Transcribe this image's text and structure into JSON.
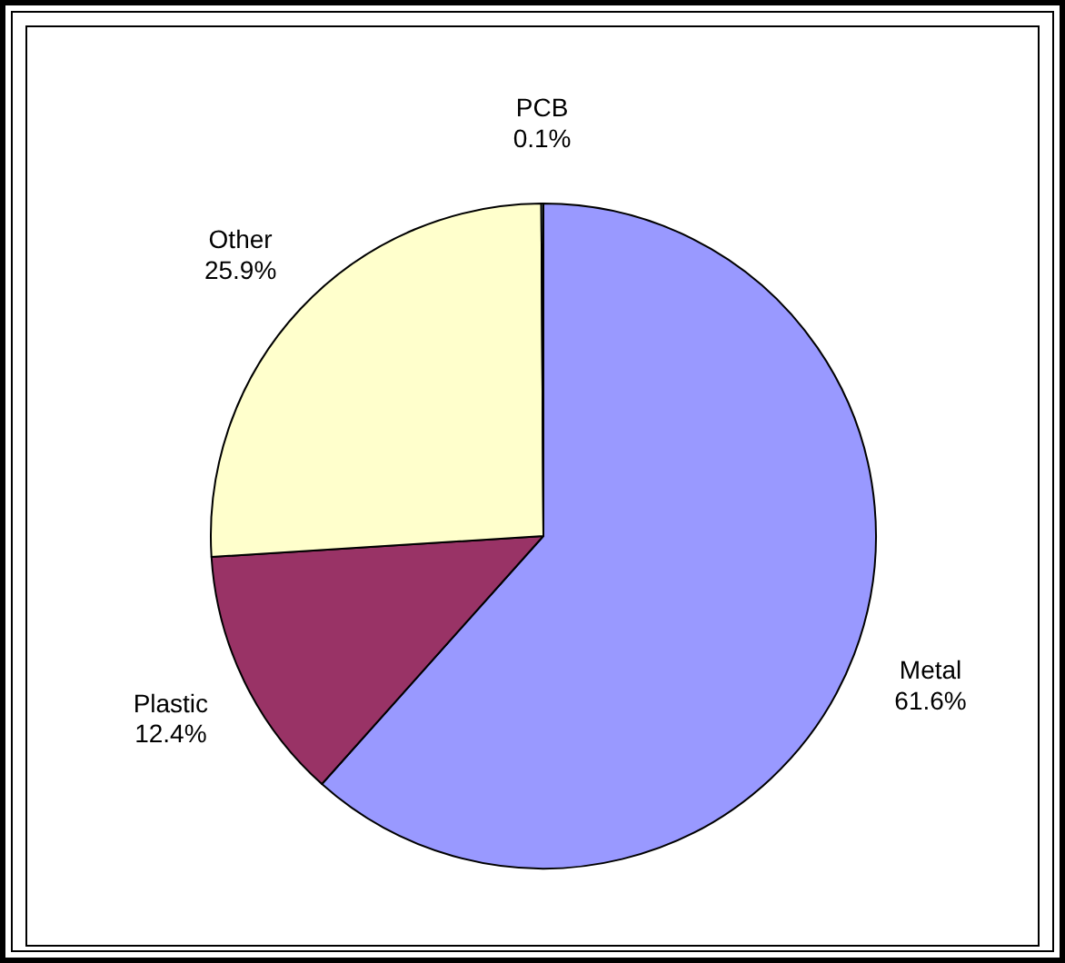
{
  "chart_data": {
    "type": "pie",
    "categories": [
      "Metal",
      "Plastic",
      "Other",
      "PCB"
    ],
    "values": [
      61.6,
      12.4,
      25.9,
      0.1
    ],
    "colors": [
      "#9999ff",
      "#993366",
      "#ffffcc",
      "#ccffff"
    ],
    "value_labels": [
      "61.6%",
      "12.4%",
      "25.9%",
      "0.1%"
    ]
  }
}
